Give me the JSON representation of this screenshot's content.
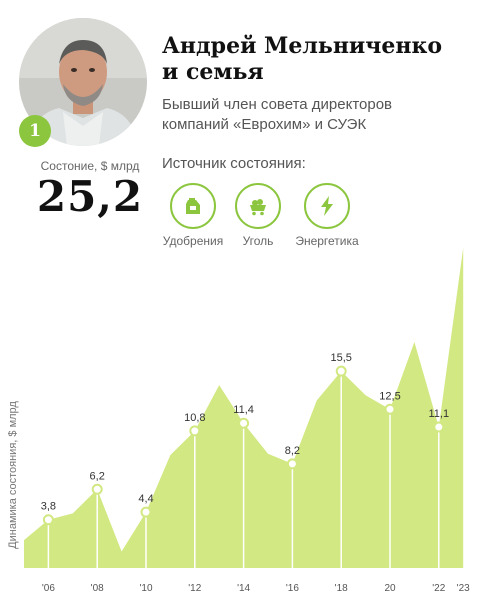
{
  "person": {
    "rank": "1",
    "name_line1": "Андрей Мельниченко",
    "name_line2": "и семья",
    "desc_line1": "Бывший член совета директоров",
    "desc_line2": "компаний «Еврохим» и СУЭК"
  },
  "wealth": {
    "label": "Состоние, $ млрд",
    "value": "25,2"
  },
  "sources": {
    "title": "Источник состояния:",
    "items": [
      {
        "label": "Удобрения",
        "icon": "fertilizer-bag-icon"
      },
      {
        "label": "Уголь",
        "icon": "coal-cart-icon"
      },
      {
        "label": "Энергетика",
        "icon": "lightning-icon"
      }
    ]
  },
  "colors": {
    "accent": "#8cc63f",
    "area": "#d2e882",
    "line": "#ffffff"
  },
  "chart_data": {
    "type": "area",
    "ylabel": "Динамика состояния, $ млрд",
    "ylim": [
      0,
      25.2
    ],
    "x_ticks": [
      "'06",
      "'08",
      "'10",
      "'12",
      "'14",
      "'16",
      "'18",
      "20",
      "'22",
      "'23"
    ],
    "points": [
      {
        "x": 2005,
        "y": 2.2
      },
      {
        "x": 2006,
        "y": 3.8,
        "label": "3,8"
      },
      {
        "x": 2007,
        "y": 4.3
      },
      {
        "x": 2008,
        "y": 6.2,
        "label": "6,2"
      },
      {
        "x": 2009,
        "y": 1.3
      },
      {
        "x": 2010,
        "y": 4.4,
        "label": "4,4"
      },
      {
        "x": 2011,
        "y": 8.9
      },
      {
        "x": 2012,
        "y": 10.8,
        "label": "10,8"
      },
      {
        "x": 2013,
        "y": 14.4
      },
      {
        "x": 2014,
        "y": 11.4,
        "label": "11,4"
      },
      {
        "x": 2015,
        "y": 9.0
      },
      {
        "x": 2016,
        "y": 8.2,
        "label": "8,2"
      },
      {
        "x": 2017,
        "y": 13.2
      },
      {
        "x": 2018,
        "y": 15.5,
        "label": "15,5"
      },
      {
        "x": 2019,
        "y": 13.6
      },
      {
        "x": 2020,
        "y": 12.5,
        "label": "12,5"
      },
      {
        "x": 2021,
        "y": 17.8
      },
      {
        "x": 2022,
        "y": 11.1,
        "label": "11,1"
      },
      {
        "x": 2023,
        "y": 25.2
      }
    ],
    "marked_years": [
      2006,
      2008,
      2010,
      2012,
      2014,
      2016,
      2018,
      2020,
      2022
    ]
  }
}
